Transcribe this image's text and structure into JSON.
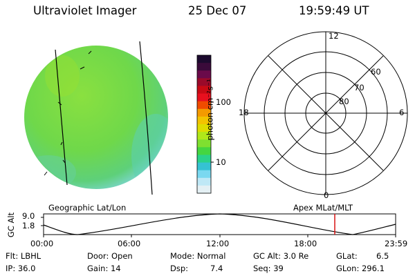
{
  "header": {
    "title": "Ultraviolet Imager",
    "date": "25 Dec 07",
    "time": "19:59:49 UT"
  },
  "colorbar": {
    "label": "photon cm⁻²s⁻¹",
    "ticks": [
      "100",
      "10"
    ],
    "colors": [
      "#1c0a2e",
      "#3a0a3a",
      "#6a0a4a",
      "#9a0a2a",
      "#c80a14",
      "#e8101e",
      "#f04b00",
      "#f49a00",
      "#f2c300",
      "#dedc00",
      "#b0e81a",
      "#7fe030",
      "#44d640",
      "#2ad28a",
      "#35c2d2",
      "#7ad8f0",
      "#bfe8f6",
      "#e4f0f4"
    ]
  },
  "geo": {
    "label": "Geographic Lat/Lon",
    "disk_color": "#6fd84a"
  },
  "polar": {
    "label": "Apex MLat/MLT",
    "hour_labels": {
      "top": "12",
      "left": "18",
      "right": "6",
      "bottom": "0"
    },
    "lat_labels": [
      "60",
      "70",
      "80"
    ]
  },
  "orbit": {
    "y_axis_label": "GC Alt",
    "y_ticks": [
      "9.0",
      "1.8"
    ],
    "x_ticks": [
      "00:00",
      "06:00",
      "12:00",
      "18:00",
      "23:59"
    ],
    "marker_color": "#d81010",
    "marker_time": "20:00"
  },
  "info": {
    "row1": {
      "flt": "Flt: LBHL",
      "door": "Door: Open",
      "mode": "Mode: Normal",
      "gcalt": "GC Alt: 3.0 Re",
      "glat": "GLat:",
      "glat_val": "6.5"
    },
    "row2": {
      "ip": "IP: 36.0",
      "gain": "Gain: 14",
      "dsp": "Dsp:",
      "dsp_val": "7.4",
      "seq": "Seq: 39",
      "glon": "GLon: 296.1"
    }
  }
}
